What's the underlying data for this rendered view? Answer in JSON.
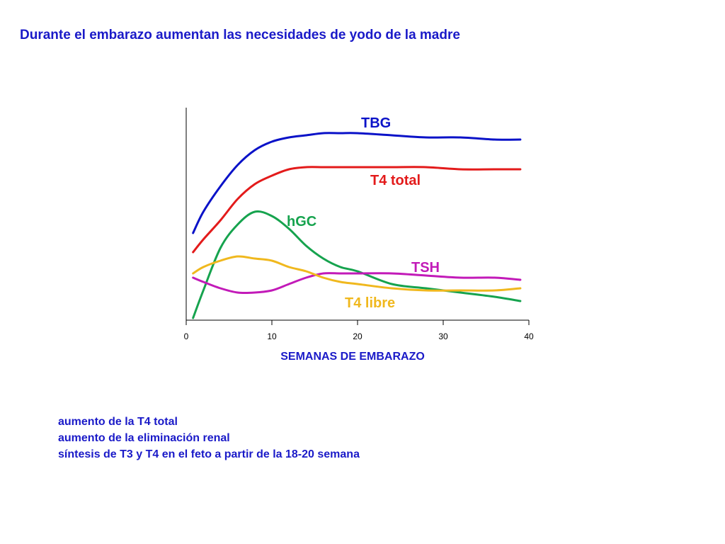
{
  "chart_data": {
    "type": "line",
    "title": "Durante el embarazo aumentan las necesidades de yodo de la madre",
    "x_label": "SEMANAS DE EMBARAZO",
    "x": [
      0.8,
      2,
      4,
      6,
      8,
      10,
      12,
      14,
      16,
      18,
      20,
      24,
      28,
      32,
      36,
      39
    ],
    "xlim": [
      0,
      40
    ],
    "xticks": [
      0,
      10,
      20,
      30,
      40
    ],
    "ylim": [
      0,
      100
    ],
    "series": [
      {
        "name": "TBG",
        "color": "#0a12c8",
        "values": [
          41,
          51,
          63,
          73,
          80,
          84,
          86,
          87,
          88,
          88,
          88,
          87,
          86,
          86,
          85,
          85
        ]
      },
      {
        "name": "T4 total",
        "color": "#e31b1b",
        "values": [
          32,
          38,
          47,
          57,
          64,
          68,
          71,
          72,
          72,
          72,
          72,
          72,
          72,
          71,
          71,
          71
        ]
      },
      {
        "name": "hGC",
        "color": "#16a34e",
        "values": [
          1,
          14,
          34,
          45,
          51,
          49,
          43,
          35,
          29,
          25,
          23,
          17,
          15,
          13,
          11,
          9
        ]
      },
      {
        "name": "TSH",
        "color": "#c21ab8",
        "values": [
          20,
          18,
          15,
          13,
          13,
          14,
          17,
          20,
          22,
          22,
          22,
          22,
          21,
          20,
          20,
          19
        ]
      },
      {
        "name": "T4 libre",
        "color": "#f0b81e",
        "values": [
          22,
          25,
          28,
          30,
          29,
          28,
          25,
          23,
          20,
          18,
          17,
          15,
          14,
          14,
          14,
          15
        ]
      }
    ],
    "notes": [
      "aumento de la T4 total",
      "aumento de la eliminación renal",
      "síntesis de T3 y T4 en el feto a partir de la 18-20 semana"
    ]
  }
}
